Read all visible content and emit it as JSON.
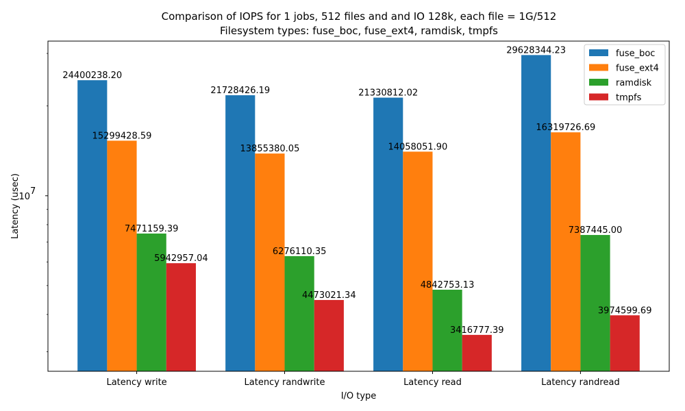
{
  "chart_data": {
    "type": "bar",
    "title_line1": "Comparison of IOPS for 1 jobs, 512 files and  and IO 128k, each file = 1G/512",
    "title_line2": "Filesystem types: fuse_boc, fuse_ext4, ramdisk, tmpfs",
    "xlabel": "I/O type",
    "ylabel": "Latency (usec)",
    "yscale": "log",
    "ylim": [
      2580000,
      33000000
    ],
    "y_major_tick": {
      "value": 10000000,
      "label_base": "10",
      "label_exp": "7"
    },
    "categories": [
      "Latency write",
      "Latency randwrite",
      "Latency read",
      "Latency randread"
    ],
    "series": [
      {
        "name": "fuse_boc",
        "color": "#1f77b4",
        "values": [
          24400238.2,
          21728426.19,
          21330812.02,
          29628344.23
        ],
        "labels": [
          "24400238.20",
          "21728426.19",
          "21330812.02",
          "29628344.23"
        ]
      },
      {
        "name": "fuse_ext4",
        "color": "#ff7f0e",
        "values": [
          15299428.59,
          13855380.05,
          14058051.9,
          16319726.69
        ],
        "labels": [
          "15299428.59",
          "13855380.05",
          "14058051.90",
          "16319726.69"
        ]
      },
      {
        "name": "ramdisk",
        "color": "#2ca02c",
        "values": [
          7471159.39,
          6276110.35,
          4842753.13,
          7387445.0
        ],
        "labels": [
          "7471159.39",
          "6276110.35",
          "4842753.13",
          "7387445.00"
        ]
      },
      {
        "name": "tmpfs",
        "color": "#d62728",
        "values": [
          5942957.04,
          4473021.34,
          3416777.39,
          3974599.69
        ],
        "labels": [
          "5942957.04",
          "4473021.34",
          "3416777.39",
          "3974599.69"
        ]
      }
    ],
    "legend_position": "top-right",
    "grid": false
  }
}
